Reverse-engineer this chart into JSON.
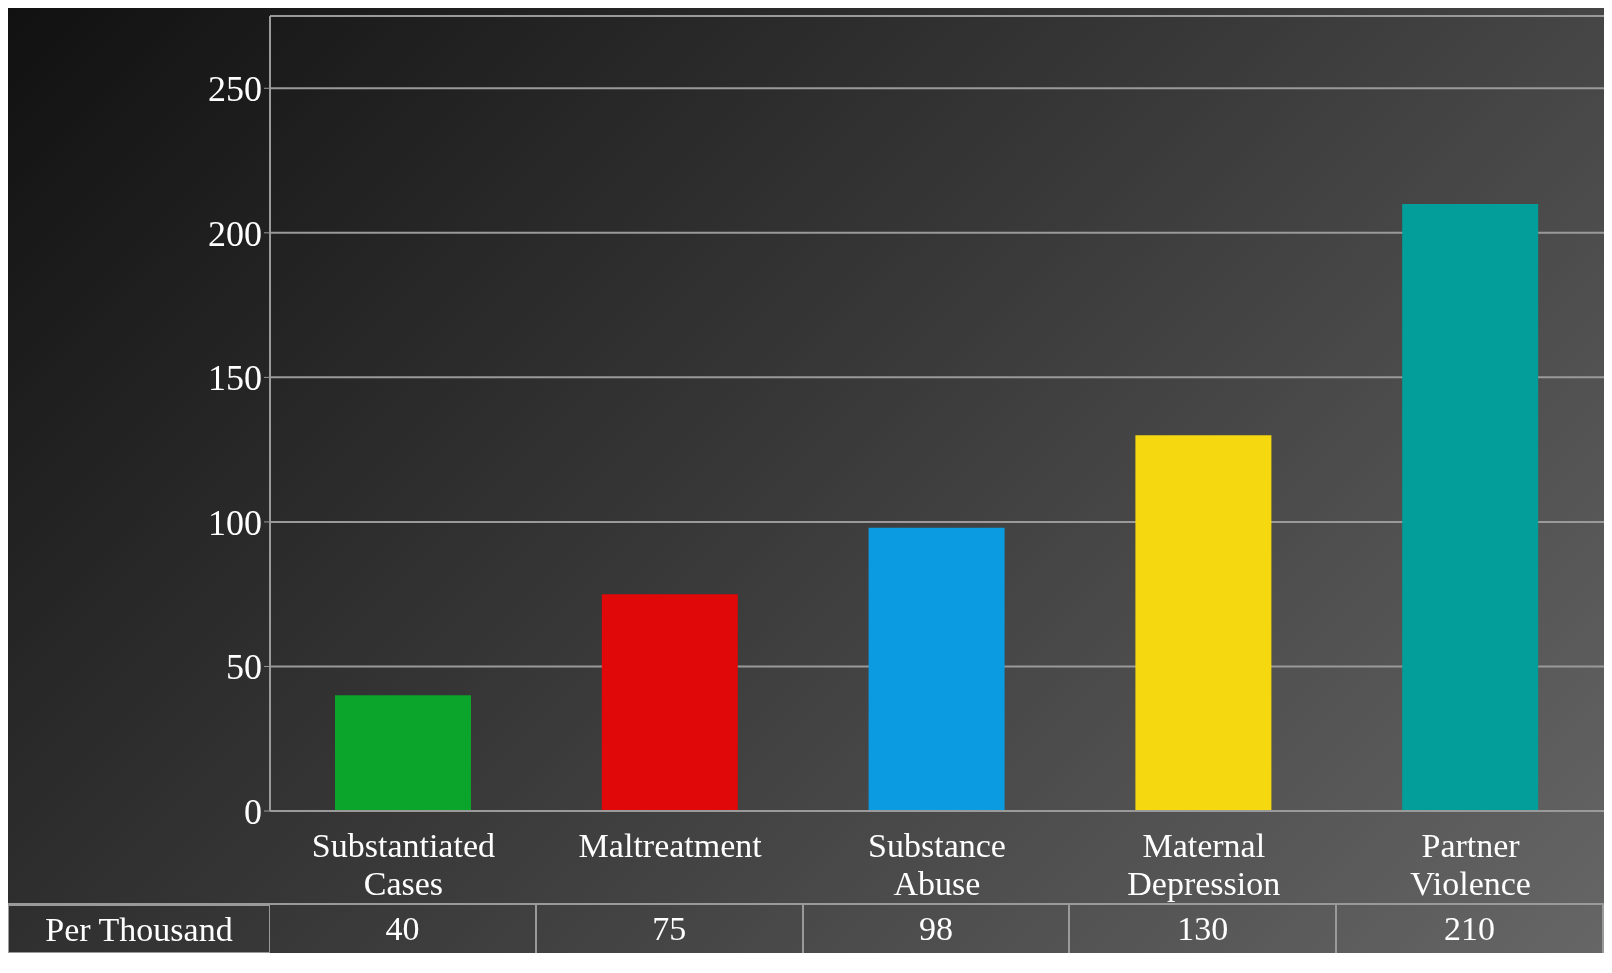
{
  "chart_data": {
    "type": "bar",
    "categories": [
      "Substantiated Cases",
      "Maltreatment",
      "Substance Abuse",
      "Maternal Depression",
      "Partner Violence"
    ],
    "series": [
      {
        "name": "Per Thousand",
        "colors": [
          "#0aa52a",
          "#e00808",
          "#0a9be0",
          "#f5d810",
          "#039e9a"
        ],
        "values": [
          40,
          75,
          98,
          130,
          210
        ]
      }
    ],
    "ylim": [
      0,
      275
    ],
    "yticks": [
      0,
      50,
      100,
      150,
      200,
      250
    ],
    "grid": "y",
    "data_labels": true,
    "legend": false
  }
}
